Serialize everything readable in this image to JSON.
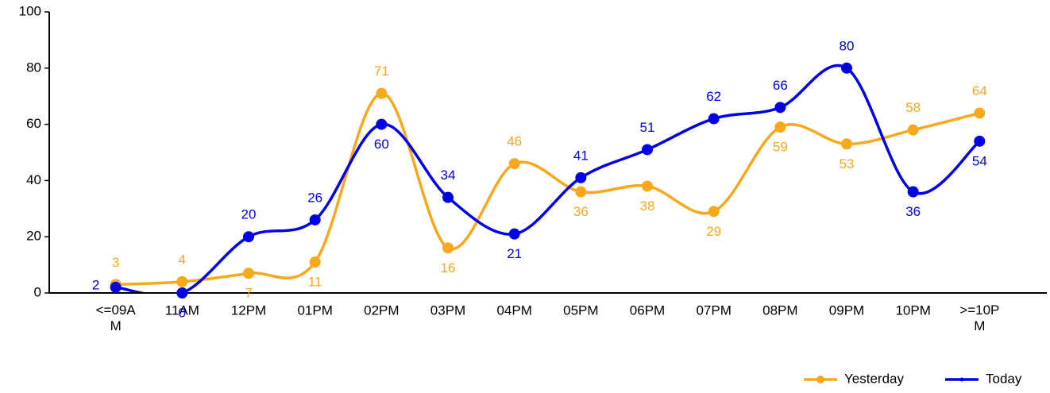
{
  "chart_data": {
    "type": "line",
    "categories": [
      "<=09AM",
      "11AM",
      "12PM",
      "01PM",
      "02PM",
      "03PM",
      "04PM",
      "05PM",
      "06PM",
      "07PM",
      "08PM",
      "09PM",
      "10PM",
      ">=10PM"
    ],
    "series": [
      {
        "name": "Yesterday",
        "color": "#f7a81b",
        "values": [
          3,
          4,
          7,
          11,
          71,
          16,
          46,
          36,
          38,
          29,
          59,
          53,
          58,
          64
        ]
      },
      {
        "name": "Today",
        "color": "#0000e6",
        "values": [
          2,
          0,
          20,
          26,
          60,
          34,
          21,
          41,
          51,
          62,
          66,
          80,
          36,
          54
        ]
      }
    ],
    "ylim": [
      0,
      100
    ],
    "yticks": [
      0,
      20,
      40,
      60,
      80,
      100
    ],
    "grid": false,
    "legend": "bottom-right"
  }
}
